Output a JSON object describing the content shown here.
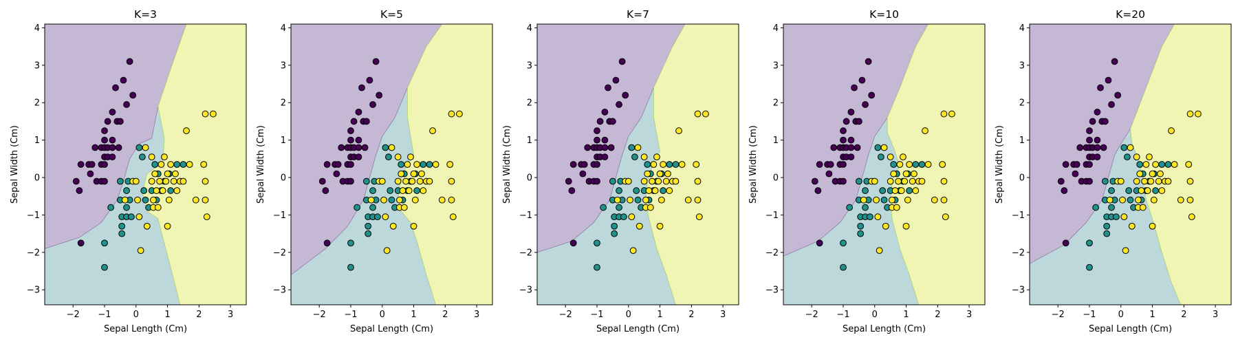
{
  "figure": {
    "background": "#ffffff"
  },
  "colors": {
    "class_0_point": "#440154",
    "class_1_point": "#21918c",
    "class_2_point": "#fde725",
    "class_0_region": "#c4b8d4",
    "class_1_region": "#bcd8da",
    "class_2_region": "#f1f5b3",
    "point_edge": "#000000",
    "axis": "#000000"
  },
  "chart_data": [
    {
      "type": "scatter",
      "title": "K=3",
      "xlabel": "Sepal Length (Cm)",
      "ylabel": "Sepal Width (Cm)",
      "xlim": [
        -2.9,
        3.5
      ],
      "ylim": [
        -3.4,
        4.1
      ],
      "xticks": [
        -2,
        -1,
        0,
        1,
        2,
        3
      ],
      "yticks": [
        -3,
        -2,
        -1,
        0,
        1,
        2,
        3,
        4
      ],
      "grid": false,
      "boundaries": {
        "purple_green": [
          [
            -2.9,
            -1.9
          ],
          [
            -1.8,
            -1.6
          ],
          [
            -1.1,
            -1.2
          ],
          [
            -0.6,
            -0.6
          ],
          [
            -0.4,
            -0.1
          ],
          [
            -0.2,
            0.5
          ],
          [
            0.1,
            0.9
          ],
          [
            0.5,
            1.05
          ],
          [
            0.7,
            1.9
          ],
          [
            1.1,
            2.9
          ],
          [
            1.6,
            4.1
          ]
        ],
        "yellow_green": [
          [
            1.4,
            -3.4
          ],
          [
            1.1,
            -2.4
          ],
          [
            0.85,
            -1.6
          ],
          [
            0.7,
            -1.1
          ],
          [
            0.35,
            -0.9
          ],
          [
            0.2,
            -0.4
          ],
          [
            0.35,
            0.1
          ],
          [
            0.85,
            0.4
          ],
          [
            0.9,
            1.05
          ],
          [
            0.7,
            1.9
          ]
        ]
      }
    },
    {
      "type": "scatter",
      "title": "K=5",
      "xlabel": "Sepal Length (Cm)",
      "ylabel": "Sepal Width (Cm)",
      "xlim": [
        -2.9,
        3.5
      ],
      "ylim": [
        -3.4,
        4.1
      ],
      "xticks": [
        -2,
        -1,
        0,
        1,
        2,
        3
      ],
      "yticks": [
        -3,
        -2,
        -1,
        0,
        1,
        2,
        3,
        4
      ],
      "grid": false,
      "boundaries": {
        "purple_green": [
          [
            -2.9,
            -2.6
          ],
          [
            -1.8,
            -1.9
          ],
          [
            -1.1,
            -1.3
          ],
          [
            -0.6,
            -0.6
          ],
          [
            -0.4,
            0.0
          ],
          [
            -0.2,
            0.6
          ],
          [
            0.0,
            1.1
          ],
          [
            0.4,
            1.6
          ],
          [
            0.8,
            2.4
          ],
          [
            1.4,
            3.5
          ],
          [
            1.9,
            4.1
          ]
        ],
        "yellow_green": [
          [
            1.7,
            -3.4
          ],
          [
            1.4,
            -2.6
          ],
          [
            1.1,
            -1.7
          ],
          [
            0.9,
            -1.2
          ],
          [
            0.6,
            -0.9
          ],
          [
            0.5,
            -0.4
          ],
          [
            0.7,
            0.2
          ],
          [
            1.0,
            0.6
          ],
          [
            0.8,
            1.6
          ]
        ]
      }
    },
    {
      "type": "scatter",
      "title": "K=7",
      "xlabel": "Sepal Length (Cm)",
      "ylabel": "Sepal Width (Cm)",
      "xlim": [
        -2.9,
        3.5
      ],
      "ylim": [
        -3.4,
        4.1
      ],
      "xticks": [
        -2,
        -1,
        0,
        1,
        2,
        3
      ],
      "yticks": [
        -3,
        -2,
        -1,
        0,
        1,
        2,
        3,
        4
      ],
      "grid": false,
      "boundaries": {
        "purple_green": [
          [
            -2.9,
            -2.0
          ],
          [
            -1.8,
            -1.7
          ],
          [
            -1.1,
            -1.2
          ],
          [
            -0.6,
            -0.6
          ],
          [
            -0.4,
            0.0
          ],
          [
            -0.2,
            0.6
          ],
          [
            0.0,
            1.1
          ],
          [
            0.4,
            1.6
          ],
          [
            0.8,
            2.4
          ],
          [
            1.4,
            3.5
          ],
          [
            1.8,
            4.1
          ]
        ],
        "yellow_green": [
          [
            1.5,
            -3.4
          ],
          [
            1.2,
            -2.6
          ],
          [
            0.9,
            -1.9
          ],
          [
            0.65,
            -1.1
          ],
          [
            0.55,
            -0.6
          ],
          [
            0.6,
            -0.1
          ],
          [
            0.8,
            0.4
          ],
          [
            1.0,
            0.7
          ],
          [
            0.8,
            1.6
          ]
        ]
      }
    },
    {
      "type": "scatter",
      "title": "K=10",
      "xlabel": "Sepal Length (Cm)",
      "ylabel": "Sepal Width (Cm)",
      "xlim": [
        -2.9,
        3.5
      ],
      "ylim": [
        -3.4,
        4.1
      ],
      "xticks": [
        -2,
        -1,
        0,
        1,
        2,
        3
      ],
      "yticks": [
        -3,
        -2,
        -1,
        0,
        1,
        2,
        3,
        4
      ],
      "grid": false,
      "boundaries": {
        "purple_green": [
          [
            -2.9,
            -2.1
          ],
          [
            -1.8,
            -1.7
          ],
          [
            -1.1,
            -1.2
          ],
          [
            -0.6,
            -0.6
          ],
          [
            -0.4,
            0.0
          ],
          [
            -0.2,
            0.6
          ],
          [
            0.0,
            1.1
          ],
          [
            0.4,
            1.6
          ],
          [
            0.8,
            2.4
          ],
          [
            1.3,
            3.5
          ],
          [
            1.7,
            4.1
          ]
        ],
        "yellow_green": [
          [
            1.4,
            -3.4
          ],
          [
            1.1,
            -2.6
          ],
          [
            0.8,
            -1.9
          ],
          [
            0.55,
            -1.1
          ],
          [
            0.5,
            -0.6
          ],
          [
            0.55,
            -0.1
          ],
          [
            0.8,
            0.3
          ],
          [
            0.6,
            0.8
          ],
          [
            0.4,
            1.2
          ]
        ]
      }
    },
    {
      "type": "scatter",
      "title": "K=20",
      "xlabel": "Sepal Length (Cm)",
      "ylabel": "Sepal Width (Cm)",
      "xlim": [
        -2.9,
        3.5
      ],
      "ylim": [
        -3.4,
        4.1
      ],
      "xticks": [
        -2,
        -1,
        0,
        1,
        2,
        3
      ],
      "yticks": [
        -3,
        -2,
        -1,
        0,
        1,
        2,
        3,
        4
      ],
      "grid": false,
      "boundaries": {
        "purple_green": [
          [
            -2.9,
            -2.3
          ],
          [
            -1.8,
            -1.8
          ],
          [
            -1.1,
            -1.2
          ],
          [
            -0.6,
            -0.6
          ],
          [
            -0.4,
            0.0
          ],
          [
            -0.2,
            0.6
          ],
          [
            0.0,
            0.9
          ],
          [
            0.3,
            1.3
          ],
          [
            0.8,
            2.4
          ],
          [
            1.3,
            3.5
          ],
          [
            1.7,
            4.1
          ]
        ],
        "yellow_green": [
          [
            1.9,
            -3.4
          ],
          [
            1.6,
            -2.8
          ],
          [
            1.3,
            -2.0
          ],
          [
            1.0,
            -1.1
          ],
          [
            0.8,
            -0.6
          ],
          [
            0.7,
            -0.1
          ],
          [
            0.6,
            0.4
          ],
          [
            0.35,
            0.9
          ]
        ]
      }
    }
  ],
  "points": [
    {
      "x": -1.9,
      "y": -0.1,
      "c": 0
    },
    {
      "x": -1.8,
      "y": -0.35,
      "c": 0
    },
    {
      "x": -1.75,
      "y": 0.35,
      "c": 0
    },
    {
      "x": -1.5,
      "y": 0.35,
      "c": 0
    },
    {
      "x": -1.45,
      "y": 0.1,
      "c": 0
    },
    {
      "x": -1.4,
      "y": 0.35,
      "c": 0
    },
    {
      "x": -1.3,
      "y": 0.8,
      "c": 0
    },
    {
      "x": -1.25,
      "y": -0.1,
      "c": 0
    },
    {
      "x": -1.1,
      "y": 0.8,
      "c": 0
    },
    {
      "x": -1.1,
      "y": 0.35,
      "c": 0
    },
    {
      "x": -1.1,
      "y": -0.1,
      "c": 0
    },
    {
      "x": -1.0,
      "y": 1.25,
      "c": 0
    },
    {
      "x": -1.0,
      "y": 1.0,
      "c": 0
    },
    {
      "x": -1.0,
      "y": 0.8,
      "c": 0
    },
    {
      "x": -1.0,
      "y": 0.55,
      "c": 0
    },
    {
      "x": -1.0,
      "y": -0.1,
      "c": 0
    },
    {
      "x": -0.9,
      "y": 1.5,
      "c": 0
    },
    {
      "x": -0.9,
      "y": 0.8,
      "c": 0
    },
    {
      "x": -0.9,
      "y": 0.55,
      "c": 0
    },
    {
      "x": -0.75,
      "y": 1.75,
      "c": 0
    },
    {
      "x": -0.75,
      "y": 1.0,
      "c": 0
    },
    {
      "x": -0.75,
      "y": 0.8,
      "c": 0
    },
    {
      "x": -0.75,
      "y": 0.55,
      "c": 0
    },
    {
      "x": -0.65,
      "y": 2.4,
      "c": 0
    },
    {
      "x": -0.6,
      "y": 1.5,
      "c": 0
    },
    {
      "x": -0.55,
      "y": 0.8,
      "c": 0
    },
    {
      "x": -0.5,
      "y": 1.5,
      "c": 0
    },
    {
      "x": -0.4,
      "y": 2.6,
      "c": 0
    },
    {
      "x": -0.3,
      "y": 1.95,
      "c": 0
    },
    {
      "x": -0.2,
      "y": 3.1,
      "c": 0
    },
    {
      "x": -0.1,
      "y": 2.2,
      "c": 0
    },
    {
      "x": -1.75,
      "y": -1.75,
      "c": 0
    },
    {
      "x": -1.0,
      "y": 0.35,
      "c": 0
    },
    {
      "x": -1.0,
      "y": -1.75,
      "c": 1
    },
    {
      "x": -1.0,
      "y": -2.4,
      "c": 1
    },
    {
      "x": -0.8,
      "y": -0.8,
      "c": 1
    },
    {
      "x": -0.5,
      "y": -0.1,
      "c": 1
    },
    {
      "x": -0.5,
      "y": -0.6,
      "c": 1
    },
    {
      "x": -0.45,
      "y": -1.05,
      "c": 1
    },
    {
      "x": -0.45,
      "y": -1.3,
      "c": 1
    },
    {
      "x": -0.45,
      "y": -1.5,
      "c": 1
    },
    {
      "x": -0.3,
      "y": -0.35,
      "c": 1
    },
    {
      "x": -0.3,
      "y": -0.8,
      "c": 1
    },
    {
      "x": -0.3,
      "y": -1.05,
      "c": 1
    },
    {
      "x": -0.25,
      "y": -0.1,
      "c": 1
    },
    {
      "x": -0.2,
      "y": -0.6,
      "c": 1
    },
    {
      "x": -0.15,
      "y": -1.05,
      "c": 1
    },
    {
      "x": 0.1,
      "y": 0.8,
      "c": 1
    },
    {
      "x": 0.25,
      "y": -0.35,
      "c": 1
    },
    {
      "x": 0.3,
      "y": -0.6,
      "c": 1
    },
    {
      "x": 0.4,
      "y": -0.8,
      "c": 1
    },
    {
      "x": 0.5,
      "y": -0.35,
      "c": 1
    },
    {
      "x": 0.65,
      "y": -0.6,
      "c": 1
    },
    {
      "x": 0.7,
      "y": 0.1,
      "c": 1
    },
    {
      "x": 0.8,
      "y": -0.35,
      "c": 1
    },
    {
      "x": 1.05,
      "y": 0.1,
      "c": 1
    },
    {
      "x": 1.1,
      "y": -0.35,
      "c": 1
    },
    {
      "x": 1.3,
      "y": 0.35,
      "c": 1
    },
    {
      "x": 1.5,
      "y": 0.35,
      "c": 1
    },
    {
      "x": 0.9,
      "y": -0.1,
      "c": 1
    },
    {
      "x": 0.2,
      "y": 0.55,
      "c": 1
    },
    {
      "x": 0.6,
      "y": 0.35,
      "c": 1
    },
    {
      "x": -0.35,
      "y": -0.6,
      "c": 2
    },
    {
      "x": -0.1,
      "y": -0.1,
      "c": 2
    },
    {
      "x": 0.0,
      "y": -0.1,
      "c": 2
    },
    {
      "x": 0.05,
      "y": -0.6,
      "c": 2
    },
    {
      "x": 0.1,
      "y": -1.05,
      "c": 2
    },
    {
      "x": 0.15,
      "y": -1.95,
      "c": 2
    },
    {
      "x": 0.3,
      "y": 0.8,
      "c": 2
    },
    {
      "x": 0.35,
      "y": -1.3,
      "c": 2
    },
    {
      "x": 0.5,
      "y": -0.1,
      "c": 2
    },
    {
      "x": 0.55,
      "y": -0.6,
      "c": 2
    },
    {
      "x": 0.55,
      "y": -0.8,
      "c": 2
    },
    {
      "x": 0.6,
      "y": 0.1,
      "c": 2
    },
    {
      "x": 0.65,
      "y": -0.35,
      "c": 2
    },
    {
      "x": 0.7,
      "y": -0.8,
      "c": 2
    },
    {
      "x": 0.75,
      "y": -0.1,
      "c": 2
    },
    {
      "x": 0.8,
      "y": 0.35,
      "c": 2
    },
    {
      "x": 0.85,
      "y": -0.35,
      "c": 2
    },
    {
      "x": 0.9,
      "y": 0.55,
      "c": 2
    },
    {
      "x": 0.95,
      "y": -0.1,
      "c": 2
    },
    {
      "x": 1.05,
      "y": -0.6,
      "c": 2
    },
    {
      "x": 1.1,
      "y": 0.35,
      "c": 2
    },
    {
      "x": 1.2,
      "y": -0.1,
      "c": 2
    },
    {
      "x": 1.25,
      "y": 0.1,
      "c": 2
    },
    {
      "x": 1.3,
      "y": -0.35,
      "c": 2
    },
    {
      "x": 1.4,
      "y": -0.1,
      "c": 2
    },
    {
      "x": 1.5,
      "y": -0.1,
      "c": 2
    },
    {
      "x": 1.6,
      "y": 1.25,
      "c": 2
    },
    {
      "x": 1.7,
      "y": 0.35,
      "c": 2
    },
    {
      "x": 1.9,
      "y": -0.6,
      "c": 2
    },
    {
      "x": 2.15,
      "y": 0.35,
      "c": 2
    },
    {
      "x": 2.2,
      "y": -0.1,
      "c": 2
    },
    {
      "x": 2.2,
      "y": 1.7,
      "c": 2
    },
    {
      "x": 2.2,
      "y": -0.6,
      "c": 2
    },
    {
      "x": 2.25,
      "y": -1.05,
      "c": 2
    },
    {
      "x": 2.45,
      "y": 1.7,
      "c": 2
    },
    {
      "x": 1.0,
      "y": -1.3,
      "c": 2
    },
    {
      "x": 0.5,
      "y": 0.55,
      "c": 2
    },
    {
      "x": 1.0,
      "y": 0.1,
      "c": 2
    }
  ]
}
